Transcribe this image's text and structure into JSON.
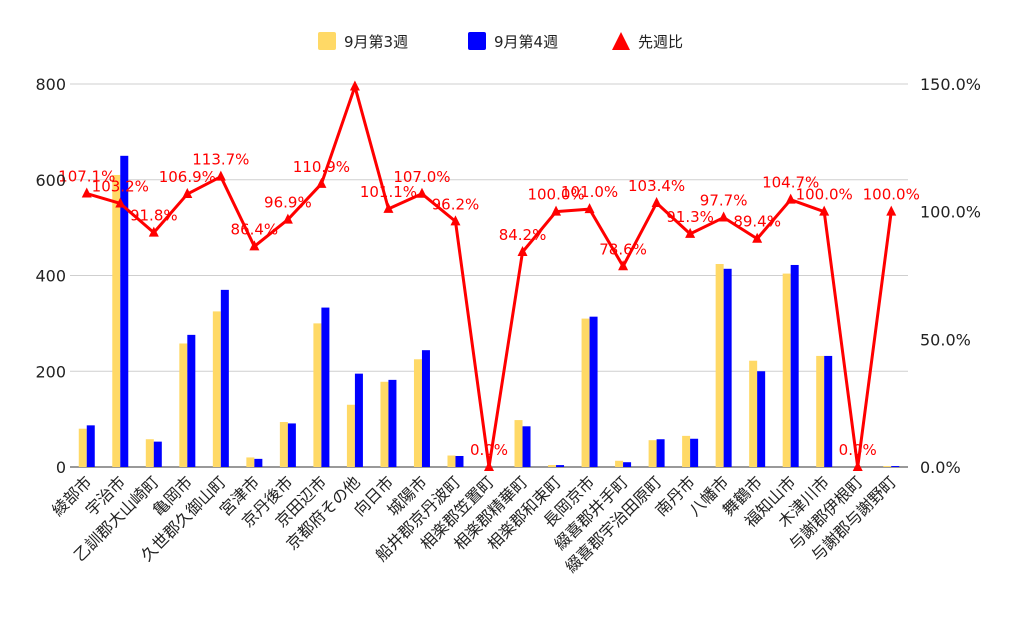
{
  "chart_data": {
    "type": "bar",
    "categories": [
      "綾部市",
      "宇治市",
      "乙訓郡大山崎町",
      "亀岡市",
      "久世郡久御山町",
      "宮津市",
      "京丹後市",
      "京田辺市",
      "京都府その他",
      "向日市",
      "城陽市",
      "船井郡京丹波町",
      "相楽郡笠置町",
      "相楽郡精華町",
      "相楽郡和束町",
      "長岡京市",
      "綴喜郡井手町",
      "綴喜郡宇治田原町",
      "南丹市",
      "八幡市",
      "舞鶴市",
      "福知山市",
      "木津川市",
      "与謝郡伊根町",
      "与謝郡与謝野町"
    ],
    "series": [
      {
        "name": "9月第3週",
        "type": "bar",
        "axis": "left",
        "color": "#ffd966",
        "values": [
          80,
          610,
          58,
          258,
          325,
          20,
          94,
          300,
          130,
          178,
          225,
          24,
          0,
          98,
          4,
          310,
          13,
          56,
          65,
          424,
          222,
          404,
          232,
          0,
          2
        ]
      },
      {
        "name": "9月第4週",
        "type": "bar",
        "axis": "left",
        "color": "#0000ff",
        "values": [
          87,
          650,
          53,
          276,
          370,
          17,
          91,
          333,
          195,
          182,
          244,
          23,
          0,
          85,
          4,
          314,
          10,
          58,
          59,
          414,
          200,
          422,
          232,
          0,
          2
        ]
      },
      {
        "name": "先週比",
        "type": "line",
        "axis": "right",
        "color": "#ff0000",
        "values": [
          107.1,
          103.2,
          91.8,
          106.9,
          113.7,
          86.4,
          96.9,
          110.9,
          149.0,
          101.1,
          107.0,
          96.2,
          0.0,
          84.2,
          100.0,
          101.0,
          78.6,
          103.4,
          91.3,
          97.7,
          89.4,
          104.7,
          100.0,
          0.0,
          100.0
        ],
        "labels": [
          "107.1%",
          "103.2%",
          "91.8%",
          "106.9%",
          "113.7%",
          "86.4%",
          "96.9%",
          "110.9%",
          "",
          "101.1%",
          "107.0%",
          "96.2%",
          "0.0%",
          "84.2%",
          "100.0%",
          "101.0%",
          "78.6%",
          "103.4%",
          "91.3%",
          "97.7%",
          "89.4%",
          "104.7%",
          "100.0%",
          "0.0%",
          "100.0%"
        ]
      }
    ],
    "left_axis": {
      "ylim": [
        0,
        800
      ],
      "ticks": [
        "0",
        "200",
        "400",
        "600",
        "800"
      ]
    },
    "right_axis": {
      "ylim": [
        0,
        150
      ],
      "ticks": [
        "0.0%",
        "50.0%",
        "100.0%",
        "150.0%"
      ]
    },
    "legend_position": "top",
    "grid": true
  }
}
